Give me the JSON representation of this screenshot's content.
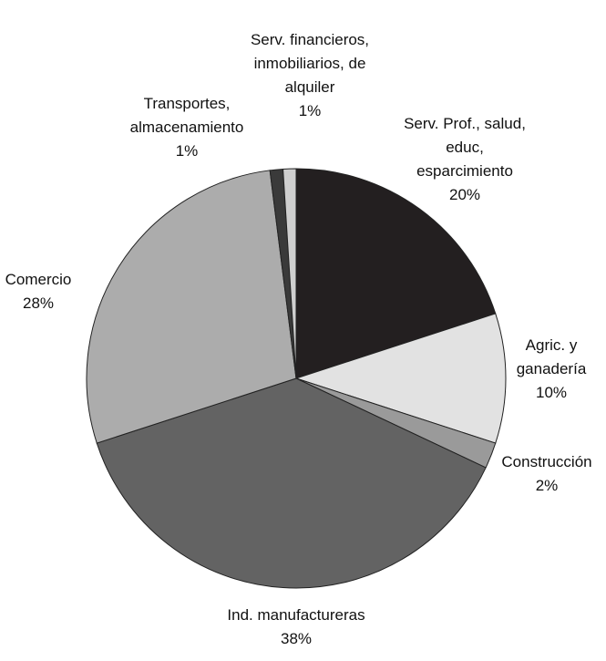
{
  "chart_data": {
    "type": "pie",
    "categories": [
      "Serv. Prof., salud, educ, esparcimiento",
      "Agric. y ganadería",
      "Construcción",
      "Ind. manufactureras",
      "Comercio",
      "Transportes, almacenamiento",
      "Serv. financieros, inmobiliarios, de alquiler"
    ],
    "values": [
      20,
      10,
      2,
      38,
      28,
      1,
      1
    ],
    "value_labels": [
      "20%",
      "10%",
      "2%",
      "38%",
      "28%",
      "1%",
      "1%"
    ],
    "colors": [
      "#231f20",
      "#e2e2e2",
      "#9a9a9a",
      "#636363",
      "#acacac",
      "#3a3a3a",
      "#cfcfcf"
    ]
  }
}
